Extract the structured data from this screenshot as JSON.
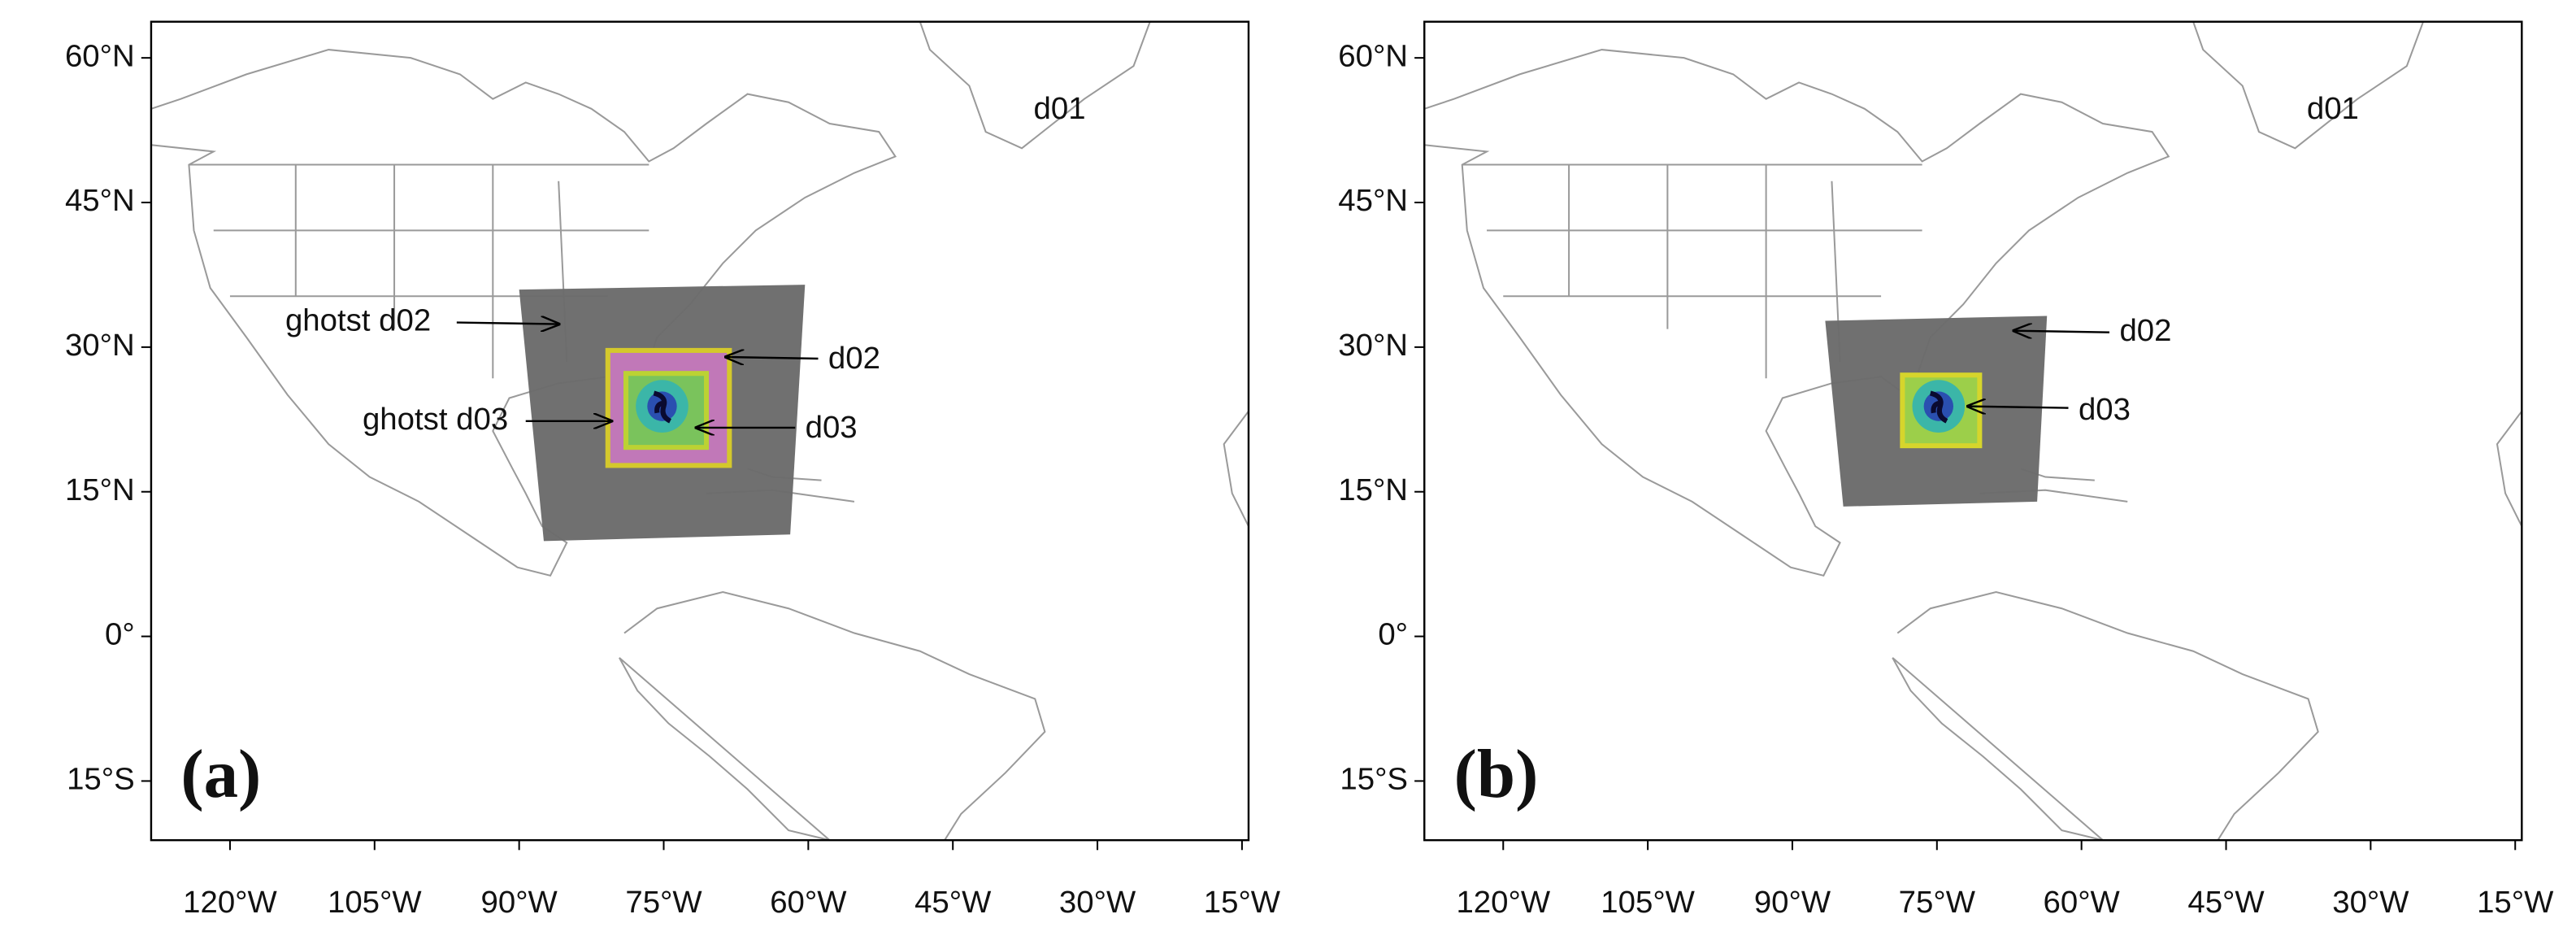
{
  "lat_ticks": [
    "60°N",
    "45°N",
    "30°N",
    "15°N",
    "0°",
    "15°S"
  ],
  "lon_ticks": [
    "120°W",
    "105°W",
    "90°W",
    "75°W",
    "60°W",
    "45°W",
    "30°W",
    "15°W"
  ],
  "panels": [
    {
      "label": "(a)",
      "outer_domain": "d01",
      "annotations": [
        "ghotst d02",
        "d02",
        "ghotst d03",
        "d03"
      ]
    },
    {
      "label": "(b)",
      "outer_domain": "d01",
      "annotations": [
        "d02",
        "d03"
      ]
    }
  ]
}
